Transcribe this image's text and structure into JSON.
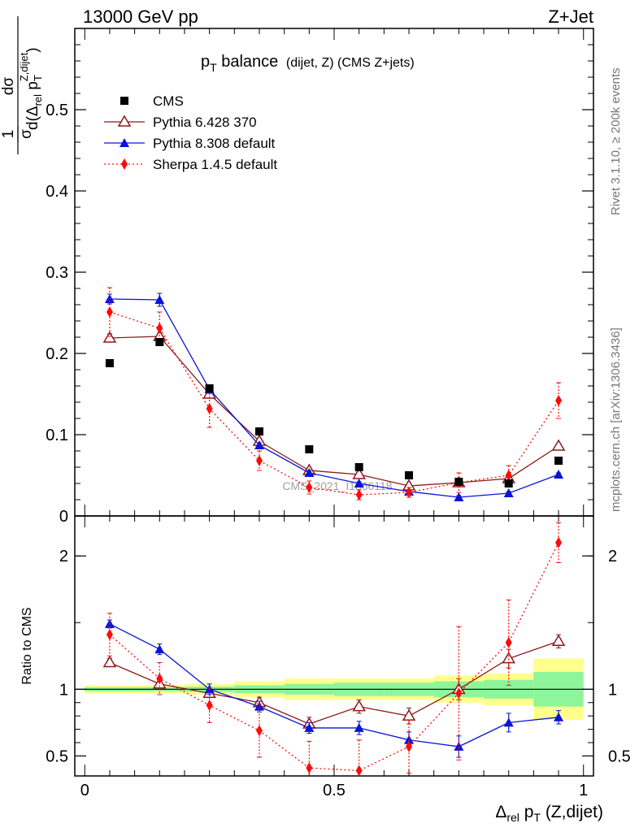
{
  "header": {
    "left": "13000 GeV pp",
    "right": "Z+Jet"
  },
  "side_labels": {
    "rivet": "Rivet 3.1.10, ≥ 200k events",
    "mcplots": "mcplots.cern.ch [arXiv:1306.3436]"
  },
  "watermark": "CMS_2021_I1866118",
  "title": {
    "main": "p",
    "main_sub": "T",
    "main_rest": " balance",
    "small": "(dijet, Z) (CMS Z+jets)"
  },
  "ylabel_main": {
    "num": "dσ",
    "pre": "1",
    "den_a": "σ",
    "den_b": "d(Δ",
    "den_sub": "rel",
    "den_c": " p",
    "den_sub2": "T",
    "den_sup": "Z,dijet",
    "den_d": ")"
  },
  "ylabel_ratio": "Ratio to CMS",
  "xlabel": {
    "a": "Δ",
    "sub": "rel",
    "b": " p",
    "sub2": "T",
    "c": " (Z,dijet)"
  },
  "colors": {
    "cms": "#000000",
    "py6": "#8b1a1a",
    "py8": "#0a14d6",
    "sherpa": "#ff0a0a",
    "band_stat": "#8ff59a",
    "band_syst": "#ffff8c"
  },
  "chart_data": {
    "type": "scatter",
    "x": [
      0.05,
      0.15,
      0.25,
      0.35,
      0.45,
      0.55,
      0.65,
      0.75,
      0.85,
      0.95
    ],
    "xlim": [
      -0.02,
      1.02
    ],
    "ylim_main": [
      0,
      0.6
    ],
    "ylim_ratio": [
      0.35,
      2.3
    ],
    "main_ticks": [
      "0",
      "0.1",
      "0.2",
      "0.3",
      "0.4",
      "0.5"
    ],
    "ratio_ticks": [
      "0.5",
      "1",
      "2"
    ],
    "x_ticks": [
      "0",
      "0.5",
      "1"
    ],
    "legend": [
      "CMS",
      "Pythia 6.428 370",
      "Pythia 8.308 default",
      "Sherpa 1.4.5 default"
    ],
    "series": [
      {
        "name": "CMS",
        "key": "cms",
        "values": [
          0.188,
          0.214,
          0.157,
          0.104,
          0.082,
          0.06,
          0.05,
          0.042,
          0.04,
          0.068
        ]
      },
      {
        "name": "Pythia 6.428 370",
        "key": "py6",
        "values": [
          0.219,
          0.221,
          0.15,
          0.092,
          0.056,
          0.051,
          0.037,
          0.041,
          0.046,
          0.086
        ],
        "err": [
          0.005,
          0.004,
          0.004,
          0.003,
          0.003,
          0.002,
          0.002,
          0.002,
          0.002,
          0.003
        ]
      },
      {
        "name": "Pythia 8.308 default",
        "key": "py8",
        "values": [
          0.267,
          0.266,
          0.156,
          0.087,
          0.053,
          0.04,
          0.03,
          0.023,
          0.028,
          0.051
        ],
        "err": [
          0.006,
          0.008,
          0.005,
          0.003,
          0.003,
          0.002,
          0.002,
          0.002,
          0.002,
          0.002
        ]
      },
      {
        "name": "Sherpa 1.4.5 default",
        "key": "sherpa",
        "values": [
          0.251,
          0.231,
          0.132,
          0.068,
          0.035,
          0.026,
          0.029,
          0.041,
          0.05,
          0.142
        ],
        "err": [
          0.03,
          0.02,
          0.023,
          0.012,
          0.008,
          0.006,
          0.006,
          0.012,
          0.012,
          0.022
        ]
      }
    ],
    "ratio_series": [
      {
        "name": "Pythia 6.428 370",
        "key": "py6",
        "values": [
          1.2,
          1.04,
          0.97,
          0.9,
          0.74,
          0.87,
          0.8,
          1.0,
          1.23,
          1.36
        ],
        "err": [
          0.03,
          0.03,
          0.03,
          0.04,
          0.05,
          0.05,
          0.06,
          0.08,
          0.07,
          0.05
        ]
      },
      {
        "name": "Pythia 8.308 default",
        "key": "py8",
        "values": [
          1.49,
          1.3,
          1.0,
          0.87,
          0.71,
          0.71,
          0.62,
          0.57,
          0.75,
          0.79
        ],
        "err": [
          0.03,
          0.04,
          0.04,
          0.04,
          0.04,
          0.05,
          0.06,
          0.08,
          0.07,
          0.05
        ]
      },
      {
        "name": "Sherpa 1.4.5 default",
        "key": "sherpa",
        "values": [
          1.41,
          1.08,
          0.88,
          0.69,
          0.41,
          0.39,
          0.57,
          0.97,
          1.35,
          2.1
        ],
        "err": [
          0.16,
          0.12,
          0.13,
          0.2,
          0.2,
          0.23,
          0.2,
          0.5,
          0.32,
          0.15
        ]
      }
    ],
    "ratio_bands": {
      "edges": [
        0.0,
        0.1,
        0.2,
        0.3,
        0.4,
        0.5,
        0.6,
        0.7,
        0.8,
        0.9,
        1.0
      ],
      "stat": [
        0.015,
        0.015,
        0.02,
        0.03,
        0.04,
        0.05,
        0.05,
        0.06,
        0.07,
        0.13
      ],
      "syst": [
        0.03,
        0.03,
        0.04,
        0.06,
        0.08,
        0.08,
        0.08,
        0.1,
        0.12,
        0.23
      ]
    }
  }
}
